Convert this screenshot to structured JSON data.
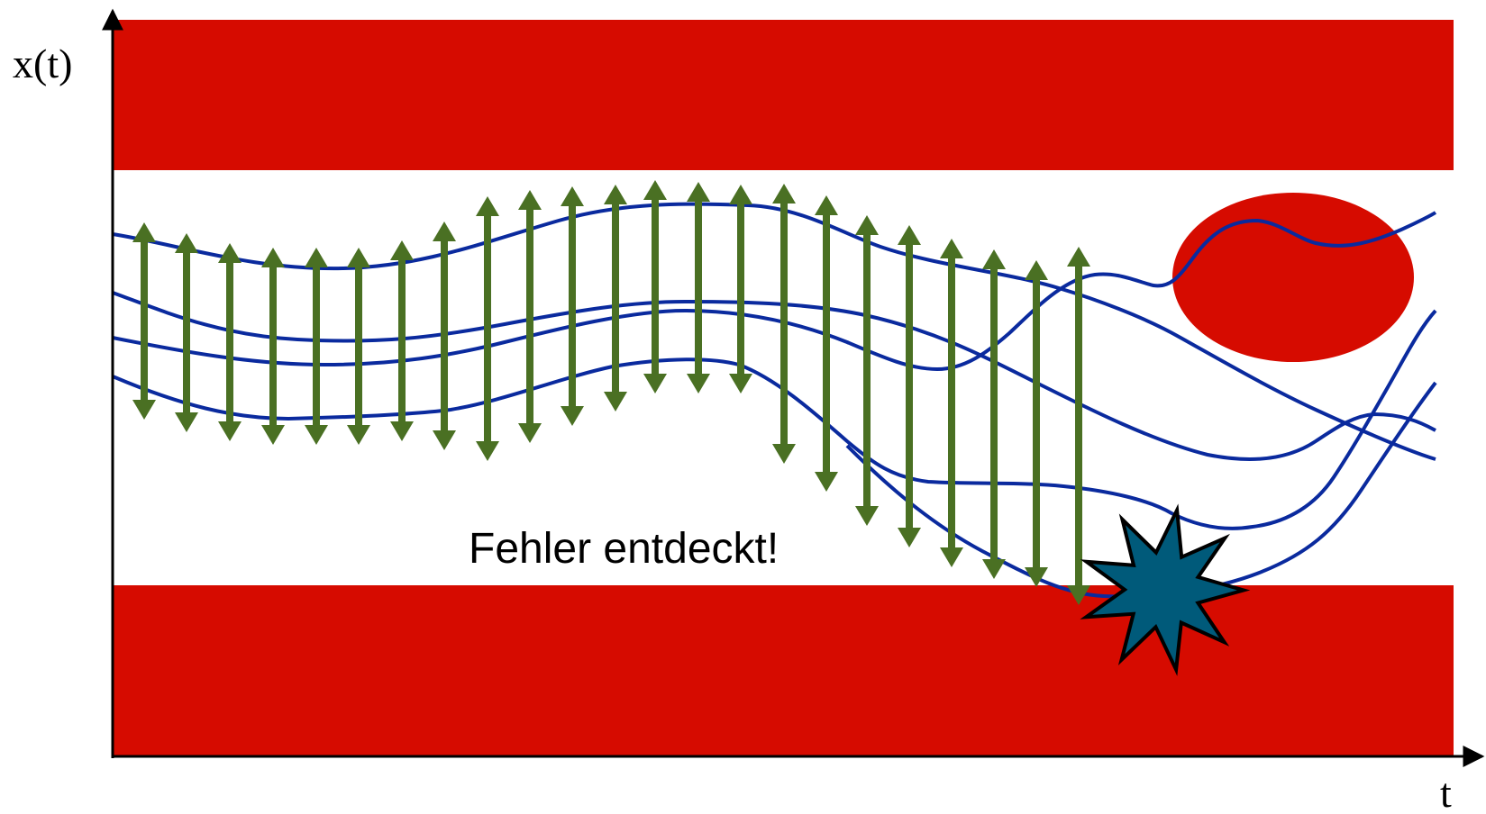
{
  "axes": {
    "y_label": "x(t)",
    "x_label": "t"
  },
  "annotation": {
    "error_text": "Fehler entdeckt!"
  },
  "colors": {
    "forbidden_region": "#d60b00",
    "trajectory": "#0a2a9e",
    "interval_arrow": "#4a7023",
    "error_star": "#005a7a",
    "axis": "#000000",
    "background": "#ffffff"
  },
  "legend": []
}
